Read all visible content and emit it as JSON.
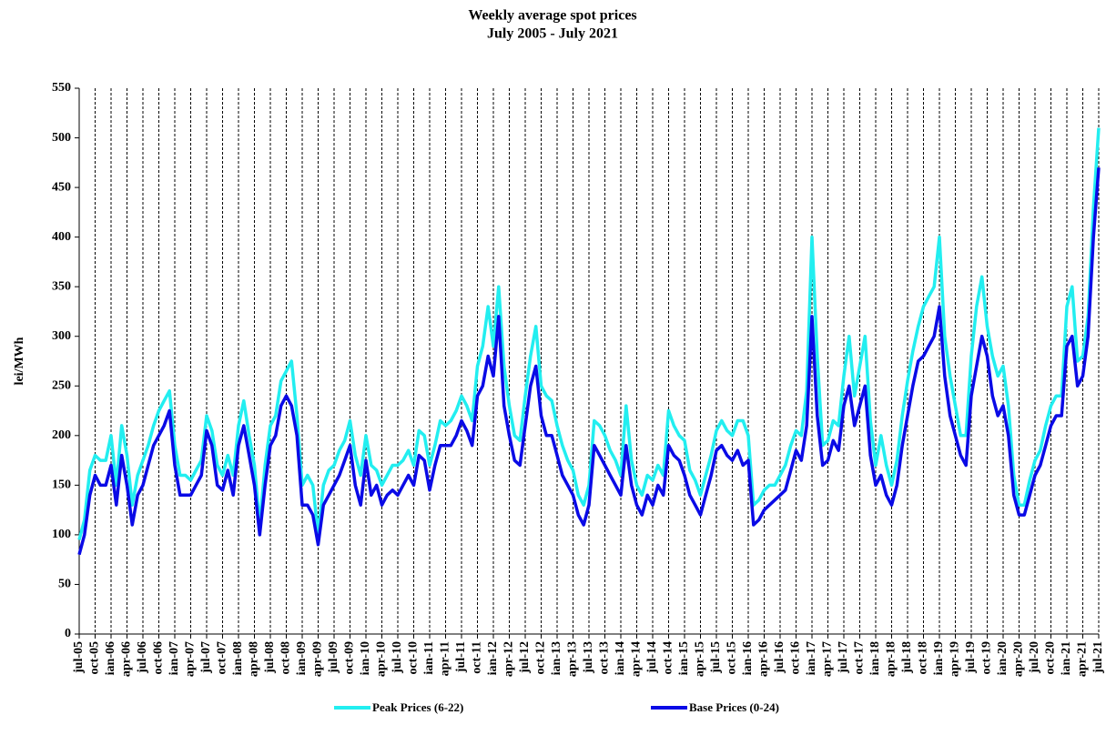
{
  "chart_data": {
    "type": "line",
    "title": "Weekly average spot prices",
    "subtitle": "July 2005 -  July 2021",
    "ylabel": "lei/MWh",
    "categories": [
      "jul-05",
      null,
      null,
      "oct-05",
      null,
      null,
      "ian-06",
      null,
      null,
      "apr-06",
      null,
      null,
      "jul-06",
      null,
      null,
      "oct-06",
      null,
      null,
      "ian-07",
      null,
      null,
      "apr-07",
      null,
      null,
      "jul-07",
      null,
      null,
      "oct-07",
      null,
      null,
      "ian-08",
      null,
      null,
      "apr-08",
      null,
      null,
      "jul-08",
      null,
      null,
      "oct-08",
      null,
      null,
      "ian-09",
      null,
      null,
      "apr-09",
      null,
      null,
      "jul-09",
      null,
      null,
      "oct-09",
      null,
      null,
      "ian-10",
      null,
      null,
      "apr-10",
      null,
      null,
      "jul-10",
      null,
      null,
      "oct-10",
      null,
      null,
      "ian-11",
      null,
      null,
      "apr-11",
      null,
      null,
      "jul-11",
      null,
      null,
      "oct-11",
      null,
      null,
      "ian-12",
      null,
      null,
      "apr-12",
      null,
      null,
      "jul-12",
      null,
      null,
      "oct-12",
      null,
      null,
      "ian-13",
      null,
      null,
      "apr-13",
      null,
      null,
      "jul-13",
      null,
      null,
      "oct-13",
      null,
      null,
      "ian-14",
      null,
      null,
      "apr-14",
      null,
      null,
      "jul-14",
      null,
      null,
      "oct-14",
      null,
      null,
      "ian-15",
      null,
      null,
      "apr-15",
      null,
      null,
      "jul-15",
      null,
      null,
      "oct-15",
      null,
      null,
      "ian-16",
      null,
      null,
      "apr-16",
      null,
      null,
      "jul-16",
      null,
      null,
      "oct-16",
      null,
      null,
      "ian-17",
      null,
      null,
      "apr-17",
      null,
      null,
      "jul-17",
      null,
      null,
      "oct-17",
      null,
      null,
      "ian-18",
      null,
      null,
      "apr-18",
      null,
      null,
      "jul-18",
      null,
      null,
      "oct-18",
      null,
      null,
      "ian-19",
      null,
      null,
      "apr-19",
      null,
      null,
      "jul-19",
      null,
      null,
      "oct-19",
      null,
      null,
      "ian-20",
      null,
      null,
      "apr-20",
      null,
      null,
      "jul-20",
      null,
      null,
      "oct-20",
      null,
      null,
      "ian-21",
      null,
      null,
      "apr-21",
      null,
      null,
      "jul-21"
    ],
    "series": [
      {
        "name": "Peak Prices (6-22)",
        "color": "#22eef0",
        "values": [
          95,
          115,
          165,
          180,
          175,
          175,
          200,
          150,
          210,
          180,
          130,
          160,
          175,
          190,
          210,
          225,
          235,
          245,
          190,
          160,
          160,
          155,
          165,
          175,
          220,
          205,
          170,
          160,
          180,
          160,
          210,
          235,
          200,
          170,
          110,
          170,
          210,
          220,
          255,
          265,
          275,
          220,
          150,
          160,
          150,
          100,
          150,
          165,
          170,
          185,
          195,
          215,
          180,
          160,
          200,
          170,
          165,
          150,
          160,
          170,
          170,
          175,
          185,
          170,
          205,
          200,
          170,
          190,
          215,
          210,
          215,
          225,
          240,
          230,
          215,
          270,
          290,
          330,
          290,
          350,
          270,
          230,
          200,
          195,
          240,
          280,
          310,
          250,
          240,
          235,
          210,
          190,
          175,
          165,
          140,
          130,
          150,
          215,
          210,
          200,
          185,
          175,
          160,
          230,
          175,
          150,
          140,
          160,
          155,
          170,
          160,
          225,
          210,
          200,
          195,
          165,
          155,
          140,
          160,
          180,
          205,
          215,
          205,
          200,
          215,
          215,
          200,
          130,
          135,
          145,
          150,
          150,
          160,
          170,
          190,
          205,
          200,
          245,
          400,
          280,
          190,
          195,
          215,
          210,
          260,
          300,
          240,
          270,
          300,
          215,
          170,
          200,
          170,
          150,
          175,
          220,
          255,
          285,
          310,
          330,
          340,
          350,
          400,
          300,
          260,
          230,
          200,
          200,
          280,
          330,
          360,
          310,
          280,
          260,
          270,
          230,
          160,
          130,
          130,
          155,
          175,
          185,
          210,
          230,
          240,
          240,
          330,
          350,
          275,
          280,
          320,
          430,
          510
        ]
      },
      {
        "name": "Base Prices (0-24)",
        "color": "#0a0ae6",
        "values": [
          80,
          100,
          140,
          160,
          150,
          150,
          170,
          130,
          180,
          150,
          110,
          140,
          150,
          170,
          190,
          200,
          210,
          225,
          170,
          140,
          140,
          140,
          150,
          160,
          205,
          190,
          150,
          145,
          165,
          140,
          190,
          210,
          180,
          150,
          100,
          150,
          190,
          200,
          230,
          240,
          230,
          200,
          130,
          130,
          120,
          90,
          130,
          140,
          150,
          160,
          175,
          190,
          150,
          130,
          175,
          140,
          150,
          130,
          140,
          145,
          140,
          150,
          160,
          150,
          180,
          175,
          145,
          170,
          190,
          190,
          190,
          200,
          215,
          205,
          190,
          240,
          250,
          280,
          260,
          320,
          230,
          200,
          175,
          170,
          210,
          250,
          270,
          220,
          200,
          200,
          180,
          160,
          150,
          140,
          120,
          110,
          130,
          190,
          180,
          170,
          160,
          150,
          140,
          190,
          150,
          130,
          120,
          140,
          130,
          150,
          140,
          190,
          180,
          175,
          160,
          140,
          130,
          120,
          140,
          160,
          185,
          190,
          180,
          175,
          185,
          170,
          175,
          110,
          115,
          125,
          130,
          135,
          140,
          145,
          165,
          185,
          175,
          210,
          320,
          220,
          170,
          175,
          195,
          185,
          230,
          250,
          210,
          230,
          250,
          180,
          150,
          160,
          140,
          130,
          150,
          190,
          220,
          250,
          275,
          280,
          290,
          300,
          330,
          260,
          220,
          200,
          180,
          170,
          240,
          270,
          300,
          280,
          240,
          220,
          230,
          200,
          140,
          120,
          120,
          140,
          160,
          170,
          190,
          210,
          220,
          220,
          290,
          300,
          250,
          260,
          300,
          400,
          470
        ]
      }
    ],
    "ylim": [
      0,
      550
    ],
    "yticks": [
      0,
      50,
      100,
      150,
      200,
      250,
      300,
      350,
      400,
      450,
      500,
      550
    ],
    "grid": "x",
    "legend": "bottom"
  }
}
